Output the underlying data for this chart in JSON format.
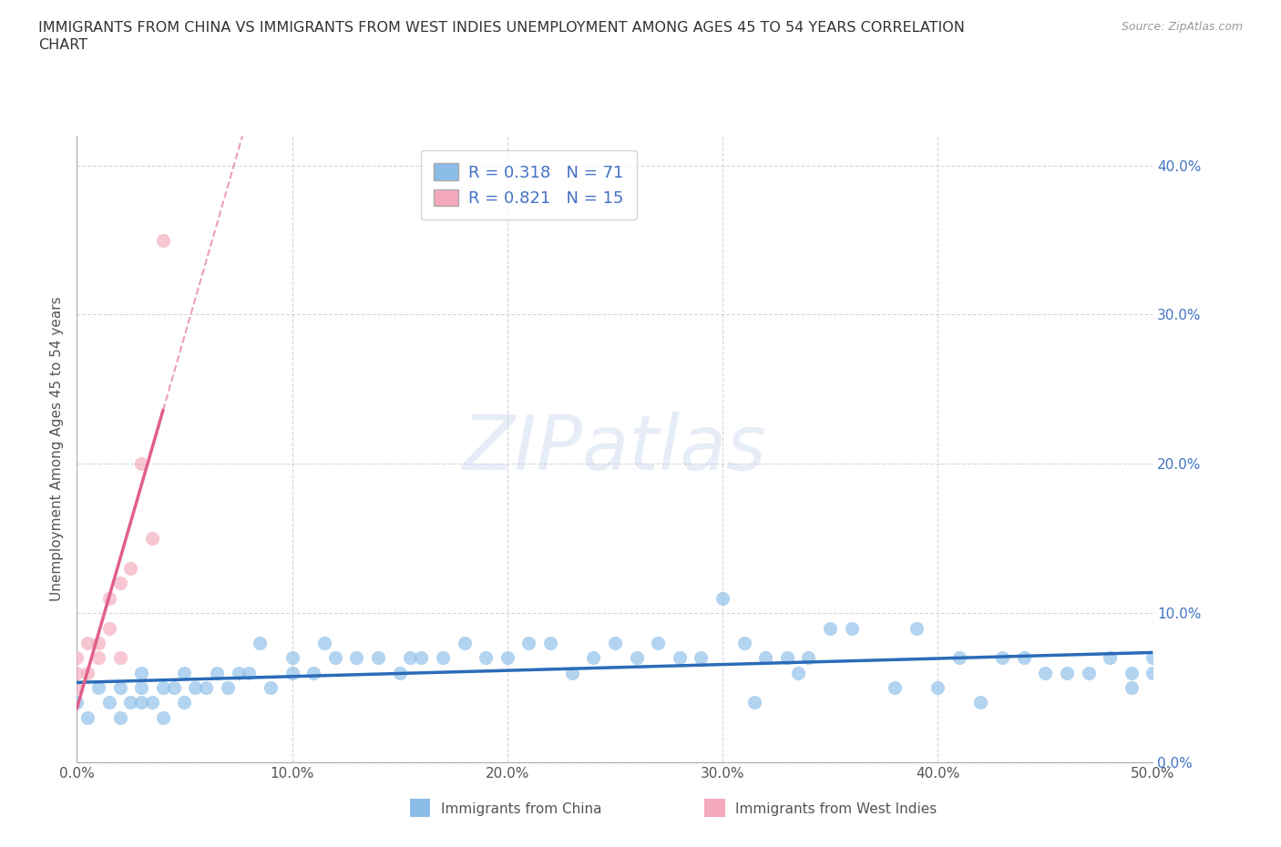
{
  "title_line1": "IMMIGRANTS FROM CHINA VS IMMIGRANTS FROM WEST INDIES UNEMPLOYMENT AMONG AGES 45 TO 54 YEARS CORRELATION",
  "title_line2": "CHART",
  "source_text": "Source: ZipAtlas.com",
  "ylabel": "Unemployment Among Ages 45 to 54 years",
  "xlim": [
    0.0,
    0.5
  ],
  "ylim": [
    0.0,
    0.42
  ],
  "xticks": [
    0.0,
    0.1,
    0.2,
    0.3,
    0.4,
    0.5
  ],
  "yticks": [
    0.0,
    0.1,
    0.2,
    0.3,
    0.4
  ],
  "xticklabels": [
    "0.0%",
    "10.0%",
    "20.0%",
    "30.0%",
    "40.0%",
    "50.0%"
  ],
  "yticklabels": [
    "0.0%",
    "10.0%",
    "20.0%",
    "30.0%",
    "40.0%"
  ],
  "watermark": "ZIPatlas",
  "legend_label_china": "R = 0.318   N = 71",
  "legend_label_wi": "R = 0.821   N = 15",
  "china_color": "#8bbde8",
  "westindies_color": "#f4a8bc",
  "china_line_color": "#2b6cb8",
  "westindies_line_color": "#e0608a",
  "grid_color": "#cccccc",
  "grid_style": "--",
  "background_color": "#ffffff",
  "china_scatter_x": [
    0.0,
    0.005,
    0.01,
    0.015,
    0.02,
    0.02,
    0.025,
    0.03,
    0.03,
    0.03,
    0.035,
    0.04,
    0.04,
    0.045,
    0.05,
    0.05,
    0.055,
    0.06,
    0.065,
    0.07,
    0.075,
    0.08,
    0.085,
    0.09,
    0.1,
    0.1,
    0.11,
    0.115,
    0.12,
    0.13,
    0.14,
    0.15,
    0.155,
    0.16,
    0.17,
    0.18,
    0.19,
    0.2,
    0.21,
    0.22,
    0.23,
    0.24,
    0.25,
    0.26,
    0.27,
    0.28,
    0.29,
    0.3,
    0.31,
    0.315,
    0.32,
    0.33,
    0.335,
    0.34,
    0.35,
    0.36,
    0.38,
    0.39,
    0.4,
    0.41,
    0.42,
    0.43,
    0.44,
    0.45,
    0.46,
    0.47,
    0.48,
    0.49,
    0.49,
    0.5,
    0.5
  ],
  "china_scatter_y": [
    0.04,
    0.03,
    0.05,
    0.04,
    0.03,
    0.05,
    0.04,
    0.04,
    0.05,
    0.06,
    0.04,
    0.03,
    0.05,
    0.05,
    0.04,
    0.06,
    0.05,
    0.05,
    0.06,
    0.05,
    0.06,
    0.06,
    0.08,
    0.05,
    0.06,
    0.07,
    0.06,
    0.08,
    0.07,
    0.07,
    0.07,
    0.06,
    0.07,
    0.07,
    0.07,
    0.08,
    0.07,
    0.07,
    0.08,
    0.08,
    0.06,
    0.07,
    0.08,
    0.07,
    0.08,
    0.07,
    0.07,
    0.11,
    0.08,
    0.04,
    0.07,
    0.07,
    0.06,
    0.07,
    0.09,
    0.09,
    0.05,
    0.09,
    0.05,
    0.07,
    0.04,
    0.07,
    0.07,
    0.06,
    0.06,
    0.06,
    0.07,
    0.05,
    0.06,
    0.06,
    0.07
  ],
  "westindies_scatter_x": [
    0.0,
    0.0,
    0.0,
    0.005,
    0.005,
    0.01,
    0.01,
    0.015,
    0.015,
    0.02,
    0.02,
    0.025,
    0.03,
    0.035,
    0.04
  ],
  "westindies_scatter_y": [
    0.05,
    0.06,
    0.07,
    0.06,
    0.08,
    0.07,
    0.08,
    0.09,
    0.11,
    0.12,
    0.07,
    0.13,
    0.2,
    0.15,
    0.35
  ],
  "bottom_legend_china": "Immigrants from China",
  "bottom_legend_wi": "Immigrants from West Indies"
}
